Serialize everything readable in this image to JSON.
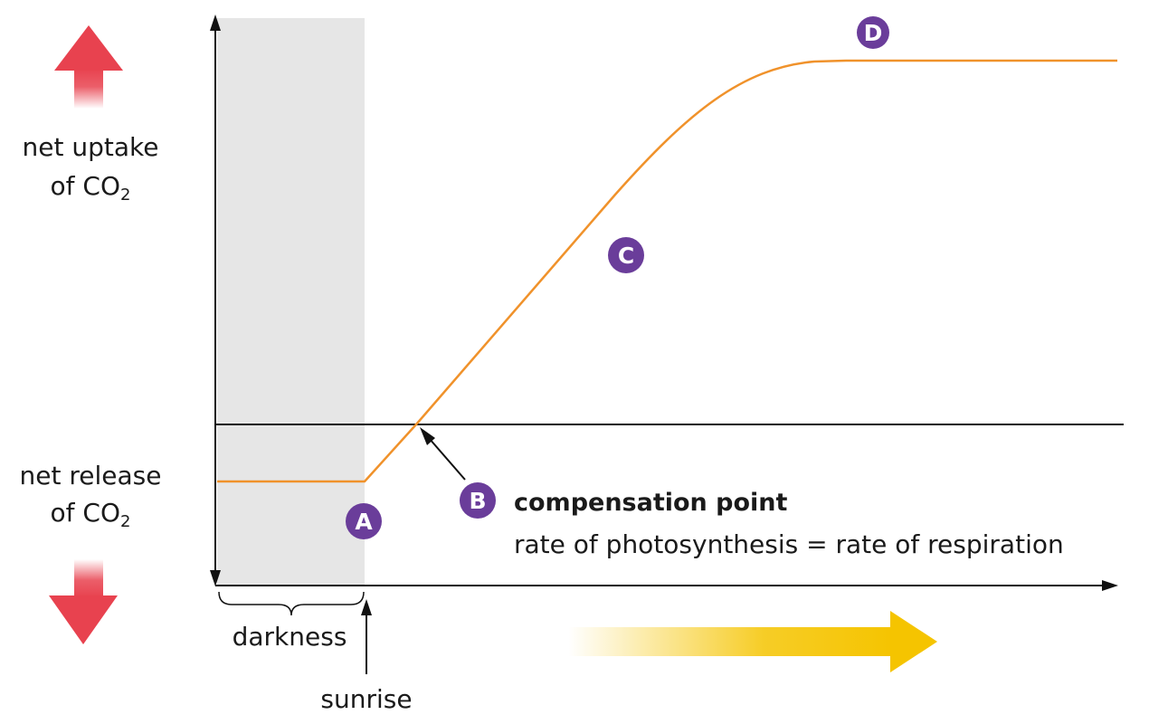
{
  "labels": {
    "net_uptake_line1": "net uptake",
    "net_uptake_line2": "of CO",
    "net_uptake_sub": "2",
    "net_release_line1": "net release",
    "net_release_line2": "of CO",
    "net_release_sub": "2",
    "darkness": "darkness",
    "sunrise": "sunrise",
    "compensation_title": "compensation point",
    "compensation_desc": "rate of photosynthesis = rate of respiration"
  },
  "markers": [
    {
      "id": "A",
      "label": "A"
    },
    {
      "id": "B",
      "label": "B"
    },
    {
      "id": "C",
      "label": "C"
    },
    {
      "id": "D",
      "label": "D"
    }
  ],
  "colors": {
    "curve": "#f0922b",
    "marker_fill": "#6a3d9a",
    "darkness_band": "#e6e6e6",
    "axis": "#111111",
    "up_arrow": "#e8424f",
    "down_arrow": "#e8424f",
    "time_arrow": "#f5c400"
  },
  "icons": {
    "up_arrow": "red-up-arrow-icon",
    "down_arrow": "red-down-arrow-icon",
    "time_arrow": "yellow-right-arrow-icon"
  }
}
